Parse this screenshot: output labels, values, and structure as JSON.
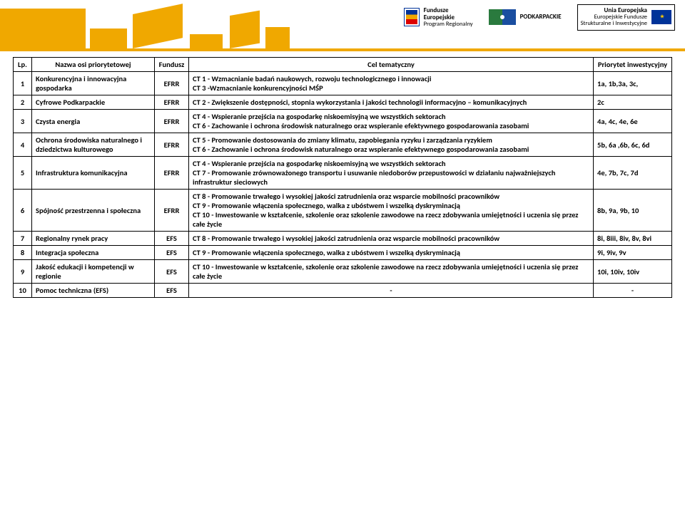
{
  "header": {
    "logo1_line1": "Fundusze",
    "logo1_line2": "Europejskie",
    "logo1_line3": "Program Regionalny",
    "logo2": "PODKARPACKIE",
    "logo3_line1": "Unia Europejska",
    "logo3_line2": "Europejskie Fundusze",
    "logo3_line3": "Strukturalne i Inwestycyjne"
  },
  "table": {
    "headers": {
      "lp": "Lp.",
      "nazwa": "Nazwa osi priorytetowej",
      "fund": "Fundusz",
      "cel": "Cel tematyczny",
      "prio": "Priorytet inwestycyjny"
    },
    "rows": [
      {
        "lp": "1",
        "nazwa": "Konkurencyjna i innowacyjna gospodarka",
        "fund": "EFRR",
        "cel": "CT 1 -  Wzmacnianie badań naukowych, rozwoju technologicznego i innowacji\nCT 3 -Wzmacnianie konkurencyjności MŚP",
        "prio": "1a, 1b,3a, 3c,"
      },
      {
        "lp": "2",
        "nazwa": "Cyfrowe Podkarpackie",
        "fund": "EFRR",
        "cel": "CT 2 -  Zwiększenie dostępności, stopnia wykorzystania i jakości technologii informacyjno – komunikacyjnych",
        "prio": "2c"
      },
      {
        "lp": "3",
        "nazwa": "Czysta energia",
        "fund": "EFRR",
        "cel": "CT 4 -  Wspieranie przejścia na gospodarkę niskoemisyjną we wszystkich sektorach\nCT 6 -  Zachowanie i ochrona środowisk naturalnego oraz wspieranie efektywnego gospodarowania zasobami",
        "prio": "4a, 4c, 4e, 6e"
      },
      {
        "lp": "4",
        "nazwa": "Ochrona środowiska naturalnego i dziedzictwa kulturowego",
        "fund": "EFRR",
        "cel": "CT 5 -  Promowanie dostosowania do zmiany klimatu, zapobiegania ryzyku i zarządzania ryzykiem\nCT 6 -  Zachowanie i ochrona środowisk naturalnego oraz wspieranie efektywnego gospodarowania zasobami",
        "prio": "5b, 6a ,6b, 6c, 6d"
      },
      {
        "lp": "5",
        "nazwa": "Infrastruktura komunikacyjna",
        "fund": "EFRR",
        "cel": "CT 4 -  Wspieranie przejścia na gospodarkę niskoemisyjną we wszystkich sektorach\nCT 7 -  Promowanie zrównoważonego transportu i usuwanie niedoborów przepustowości w działaniu najważniejszych infrastruktur sieciowych",
        "prio": "4e,  7b, 7c, 7d"
      },
      {
        "lp": "6",
        "nazwa": "Spójność przestrzenna i społeczna",
        "fund": "EFRR",
        "cel": "CT 8 -  Promowanie trwałego i wysokiej jakości zatrudnienia  oraz wsparcie mobilności pracowników\nCT 9 -  Promowanie włączenia społecznego, walka z ubóstwem i wszelką dyskryminacją\nCT 10 -  Inwestowanie w kształcenie, szkolenie oraz szkolenie zawodowe na rzecz zdobywania umiejętności i uczenia się przez całe życie",
        "prio": "8b, 9a, 9b, 10"
      },
      {
        "lp": "7",
        "nazwa": "Regionalny rynek pracy",
        "fund": "EFS",
        "cel": "CT 8 -  Promowanie trwałego i wysokiej jakości zatrudnienia  oraz wsparcie mobilności pracowników",
        "prio": "8i, 8iii, 8iv, 8v, 8vi"
      },
      {
        "lp": "8",
        "nazwa": "Integracja społeczna",
        "fund": "EFS",
        "cel": "CT 9 -  Promowanie włączenia społecznego, walka z ubóstwem i wszelką dyskryminacją",
        "prio": "9i, 9iv, 9v"
      },
      {
        "lp": "9",
        "nazwa": "Jakość edukacji i kompetencji w regionie",
        "fund": "EFS",
        "cel": "CT 10 -  Inwestowanie w kształcenie, szkolenie oraz szkolenie zawodowe na rzecz zdobywania umiejętności i uczenia się przez całe życie",
        "prio": "10i, 10iv, 10iv"
      },
      {
        "lp": "10",
        "nazwa": "Pomoc techniczna (EFS)",
        "fund": "EFS",
        "cel": "-",
        "prio": "-",
        "celCenter": true,
        "prioCenter": true
      }
    ]
  },
  "style": {
    "accent": "#f0a800",
    "border": "#000000",
    "text": "#000000",
    "background": "#ffffff",
    "font_size_pt": 10.5
  }
}
